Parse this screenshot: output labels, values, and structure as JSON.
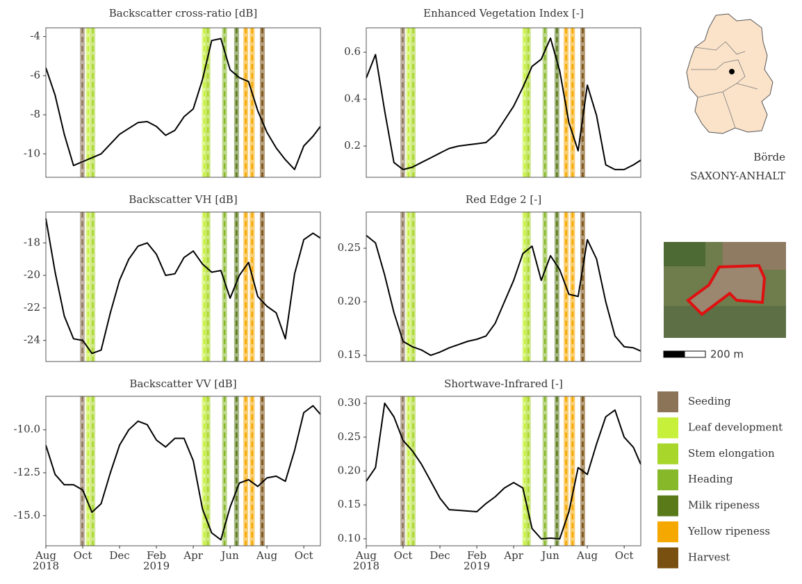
{
  "chart_data": [
    {
      "type": "line",
      "title": "Backscatter cross-ratio [dB]",
      "x": [
        0,
        0.5,
        1,
        1.5,
        2,
        2.5,
        3,
        3.5,
        4,
        4.5,
        5,
        5.5,
        6,
        6.5,
        7,
        7.5,
        8,
        8.5,
        9,
        9.5,
        10,
        10.5,
        11,
        11.5,
        12,
        12.5,
        13,
        13.5,
        14,
        14.5,
        14.9
      ],
      "values": [
        -5.6,
        -7.0,
        -9.0,
        -10.6,
        -10.4,
        -10.2,
        -10.0,
        -9.5,
        -9.0,
        -8.7,
        -8.4,
        -8.35,
        -8.6,
        -9.05,
        -8.8,
        -8.1,
        -7.7,
        -6.2,
        -4.2,
        -4.1,
        -5.7,
        -6.1,
        -6.3,
        -7.8,
        -8.9,
        -9.7,
        -10.3,
        -10.8,
        -9.6,
        -9.1,
        -8.6
      ],
      "color": "#000000",
      "xlim": [
        0,
        14.9
      ],
      "ylim": [
        -11.2,
        -3.55
      ],
      "yticks": [
        -10,
        -8,
        -6,
        -4
      ]
    },
    {
      "type": "line",
      "title": "Enhanced Vegetation Index [-]",
      "x": [
        0,
        0.5,
        1,
        1.5,
        2,
        2.5,
        3,
        3.5,
        4,
        4.5,
        5,
        5.5,
        6,
        6.5,
        7,
        7.5,
        8,
        8.5,
        9,
        9.5,
        10,
        10.5,
        11,
        11.5,
        12,
        12.5,
        13,
        13.5,
        14,
        14.5,
        14.9
      ],
      "values": [
        0.49,
        0.59,
        0.35,
        0.13,
        0.1,
        0.11,
        0.13,
        0.15,
        0.17,
        0.19,
        0.2,
        0.205,
        0.21,
        0.215,
        0.25,
        0.31,
        0.37,
        0.45,
        0.54,
        0.57,
        0.66,
        0.52,
        0.3,
        0.18,
        0.46,
        0.33,
        0.12,
        0.1,
        0.1,
        0.12,
        0.14
      ],
      "color": "#000000",
      "xlim": [
        0,
        14.9
      ],
      "ylim": [
        0.067,
        0.704
      ],
      "yticks": [
        0.2,
        0.4,
        0.6
      ]
    },
    {
      "type": "line",
      "title": "Backscatter VH [dB]",
      "x": [
        0,
        0.5,
        1,
        1.5,
        2,
        2.5,
        3,
        3.5,
        4,
        4.5,
        5,
        5.5,
        6,
        6.5,
        7,
        7.5,
        8,
        8.5,
        9,
        9.5,
        10,
        10.5,
        11,
        11.5,
        12,
        12.5,
        13,
        13.5,
        14,
        14.5,
        14.9
      ],
      "values": [
        -16.5,
        -19.8,
        -22.5,
        -23.9,
        -24.0,
        -24.8,
        -24.6,
        -22.3,
        -20.3,
        -19.0,
        -18.2,
        -18.0,
        -18.7,
        -20.0,
        -19.9,
        -18.9,
        -18.5,
        -19.3,
        -19.8,
        -19.7,
        -21.4,
        -20.0,
        -19.2,
        -21.3,
        -21.9,
        -22.3,
        -23.9,
        -19.9,
        -17.8,
        -17.4,
        -17.7
      ],
      "color": "#000000",
      "xlim": [
        0,
        14.9
      ],
      "ylim": [
        -25.3,
        -16.1
      ],
      "yticks": [
        -24,
        -22,
        -20,
        -18
      ]
    },
    {
      "type": "line",
      "title": "Red Edge 2 [-]",
      "x": [
        0,
        0.5,
        1,
        1.5,
        2,
        2.5,
        3,
        3.5,
        4,
        4.5,
        5,
        5.5,
        6,
        6.5,
        7,
        7.5,
        8,
        8.5,
        9,
        9.5,
        10,
        10.5,
        11,
        11.5,
        12,
        12.5,
        13,
        13.5,
        14,
        14.5,
        14.9
      ],
      "values": [
        0.262,
        0.255,
        0.225,
        0.19,
        0.163,
        0.158,
        0.155,
        0.15,
        0.153,
        0.157,
        0.16,
        0.163,
        0.165,
        0.168,
        0.18,
        0.2,
        0.22,
        0.245,
        0.252,
        0.22,
        0.243,
        0.23,
        0.207,
        0.205,
        0.258,
        0.24,
        0.2,
        0.168,
        0.158,
        0.157,
        0.154
      ],
      "color": "#000000",
      "xlim": [
        0,
        14.9
      ],
      "ylim": [
        0.1442,
        0.2838
      ],
      "yticks": [
        0.15,
        {
          "value": 0.2,
          "label": "0.20"
        },
        0.25
      ]
    },
    {
      "type": "line",
      "title": "Backscatter VV [dB]",
      "x": [
        0,
        0.5,
        1,
        1.5,
        2,
        2.5,
        3,
        3.5,
        4,
        4.5,
        5,
        5.5,
        6,
        6.5,
        7,
        7.5,
        8,
        8.5,
        9,
        9.5,
        10,
        10.5,
        11,
        11.5,
        12,
        12.5,
        13,
        13.5,
        14,
        14.5,
        14.9
      ],
      "values": [
        -10.9,
        -12.6,
        -13.2,
        -13.2,
        -13.5,
        -14.8,
        -14.3,
        -12.5,
        -10.9,
        -10.0,
        -9.5,
        -9.7,
        -10.6,
        -11.0,
        -10.5,
        -10.5,
        -11.8,
        -14.6,
        -16.0,
        -16.4,
        -14.5,
        -13.1,
        -12.9,
        -13.3,
        -12.8,
        -12.7,
        -13.0,
        -11.2,
        -9.0,
        -8.6,
        -9.1
      ],
      "color": "#000000",
      "xlim": [
        0,
        14.9
      ],
      "ylim": [
        -16.75,
        -8.05
      ],
      "yticks": [
        {
          "value": -15,
          "label": "-15.0"
        },
        -12.5,
        {
          "value": -10,
          "label": "-10.0"
        }
      ],
      "xticks": [
        {
          "value": 0,
          "label": "Aug\n2018"
        },
        {
          "value": 2,
          "label": "Oct"
        },
        {
          "value": 4,
          "label": "Dec"
        },
        {
          "value": 6,
          "label": "Feb\n2019"
        },
        {
          "value": 8,
          "label": "Apr"
        },
        {
          "value": 10,
          "label": "Jun"
        },
        {
          "value": 12,
          "label": "Aug"
        },
        {
          "value": 14,
          "label": "Oct"
        }
      ]
    },
    {
      "type": "line",
      "title": "Shortwave-Infrared [-]",
      "x": [
        0,
        0.5,
        1,
        1.5,
        2,
        2.5,
        3,
        3.5,
        4,
        4.5,
        5,
        5.5,
        6,
        6.5,
        7,
        7.5,
        8,
        8.5,
        9,
        9.5,
        10,
        10.5,
        11,
        11.5,
        12,
        12.5,
        13,
        13.5,
        14,
        14.5,
        14.9
      ],
      "values": [
        0.185,
        0.205,
        0.3,
        0.28,
        0.245,
        0.23,
        0.21,
        0.185,
        0.16,
        0.143,
        0.142,
        0.141,
        0.14,
        0.152,
        0.162,
        0.175,
        0.183,
        0.175,
        0.115,
        0.1,
        0.101,
        0.1,
        0.14,
        0.205,
        0.195,
        0.24,
        0.28,
        0.29,
        0.25,
        0.235,
        0.21
      ],
      "color": "#000000",
      "xlim": [
        0,
        14.9
      ],
      "ylim": [
        0.0897,
        0.3103
      ],
      "yticks": [
        {
          "value": 0.1,
          "label": "0.10"
        },
        0.15,
        {
          "value": 0.2,
          "label": "0.20"
        },
        0.25,
        {
          "value": 0.3,
          "label": "0.30"
        }
      ],
      "xticks": [
        {
          "value": 0,
          "label": "Aug\n2018"
        },
        {
          "value": 2,
          "label": "Oct"
        },
        {
          "value": 4,
          "label": "Dec"
        },
        {
          "value": 6,
          "label": "Feb\n2019"
        },
        {
          "value": 8,
          "label": "Apr"
        },
        {
          "value": 10,
          "label": "Jun"
        },
        {
          "value": 12,
          "label": "Aug"
        },
        {
          "value": 14,
          "label": "Oct"
        }
      ]
    }
  ],
  "phases": [
    {
      "name": "Seeding",
      "color": "#8c7458",
      "x": [
        1.98
      ]
    },
    {
      "name": "Leaf development",
      "color": "#c6f03a",
      "x": [
        2.3,
        8.6
      ]
    },
    {
      "name": "Stem elongation",
      "color": "#a9d62b",
      "x": [
        2.55,
        8.8
      ]
    },
    {
      "name": "Heading",
      "color": "#86b82a",
      "x": [
        9.7
      ]
    },
    {
      "name": "Milk ripeness",
      "color": "#5a7a1a",
      "x": [
        10.35
      ]
    },
    {
      "name": "Yellow ripeness",
      "color": "#f5a800",
      "x": [
        10.85,
        11.2
      ]
    },
    {
      "name": "Harvest",
      "color": "#7a5010",
      "x": [
        11.75
      ]
    }
  ],
  "map": {
    "district": "Börde",
    "state": "SAXONY-ANHALT",
    "scale": "200 m"
  }
}
